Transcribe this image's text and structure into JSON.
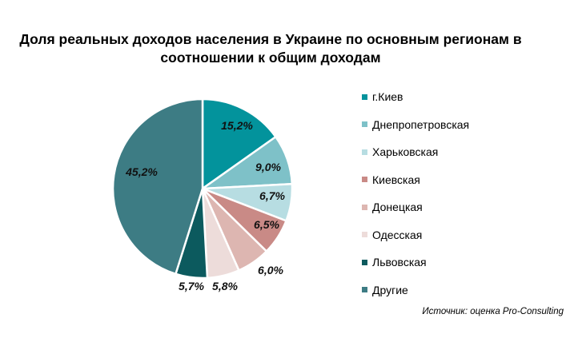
{
  "title": "Доля реальных доходов населения в Украине по основным регионам в соотношении к общим доходам",
  "source": "Источник: оценка Pro-Consulting",
  "chart_data": {
    "type": "pie",
    "title": "Доля реальных доходов населения в Украине по основным регионам в соотношении к общим доходам",
    "legend_position": "right",
    "labels": [
      "г.Киев",
      "Днепропетровская",
      "Харьковская",
      "Киевская",
      "Донецкая",
      "Одесская",
      "Львовская",
      "Другие"
    ],
    "values": [
      15.2,
      9.0,
      6.7,
      6.5,
      6.0,
      5.8,
      5.7,
      45.2
    ],
    "value_labels": [
      "15,2%",
      "9,0%",
      "6,7%",
      "6,5%",
      "6,0%",
      "5,8%",
      "5,7%",
      "45,2%"
    ],
    "colors": [
      "#03939c",
      "#7ec1c8",
      "#b7dde2",
      "#c98a86",
      "#ddb6b1",
      "#eddcda",
      "#0c5a5e",
      "#3d7c84"
    ]
  }
}
